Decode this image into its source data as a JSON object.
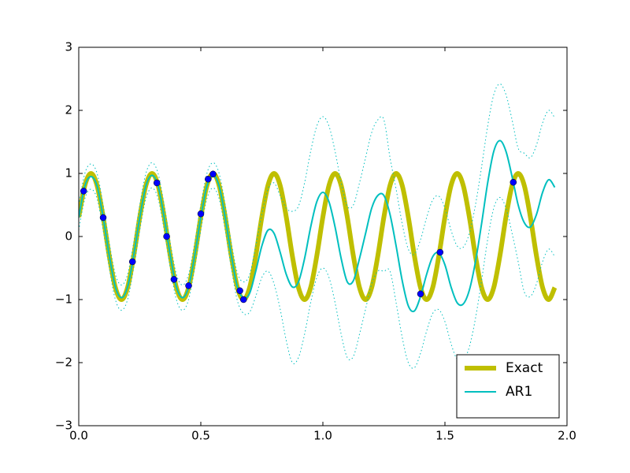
{
  "chart_data": {
    "type": "line",
    "x": [
      0,
      0.025,
      0.05,
      0.075,
      0.1,
      0.125,
      0.15,
      0.175,
      0.2,
      0.225,
      0.25,
      0.275,
      0.3,
      0.325,
      0.35,
      0.375,
      0.4,
      0.425,
      0.45,
      0.475,
      0.5,
      0.525,
      0.55,
      0.575,
      0.6,
      0.625,
      0.65,
      0.675,
      0.7,
      0.725,
      0.75,
      0.775,
      0.8,
      0.825,
      0.85,
      0.875,
      0.9,
      0.925,
      0.95,
      0.975,
      1.0,
      1.025,
      1.05,
      1.075,
      1.1,
      1.125,
      1.15,
      1.175,
      1.2,
      1.225,
      1.25,
      1.275,
      1.3,
      1.325,
      1.35,
      1.375,
      1.4,
      1.425,
      1.45,
      1.475,
      1.5,
      1.525,
      1.55,
      1.575,
      1.6,
      1.625,
      1.65,
      1.675,
      1.7,
      1.725,
      1.75,
      1.775,
      1.8,
      1.825,
      1.85,
      1.875,
      1.9,
      1.925,
      1.95
    ],
    "series": [
      {
        "name": "Exact",
        "color": "#bfbf00",
        "width": 6,
        "style": "solid",
        "values": [
          0.309,
          0.809,
          1,
          0.809,
          0.309,
          -0.309,
          -0.809,
          -1,
          -0.809,
          -0.309,
          0.309,
          0.809,
          1,
          0.809,
          0.309,
          -0.309,
          -0.809,
          -1,
          -0.809,
          -0.309,
          0.309,
          0.809,
          1,
          0.809,
          0.309,
          -0.309,
          -0.809,
          -1,
          -0.809,
          -0.309,
          0.309,
          0.809,
          1,
          0.809,
          0.309,
          -0.309,
          -0.809,
          -1,
          -0.809,
          -0.309,
          0.309,
          0.809,
          1,
          0.809,
          0.309,
          -0.309,
          -0.809,
          -1,
          -0.809,
          -0.309,
          0.309,
          0.809,
          1,
          0.809,
          0.309,
          -0.309,
          -0.809,
          -1,
          -0.809,
          -0.309,
          0.309,
          0.809,
          1,
          0.809,
          0.309,
          -0.309,
          -0.809,
          -1,
          -0.809,
          -0.309,
          0.309,
          0.809,
          1,
          0.809,
          0.309,
          -0.309,
          -0.809,
          -1,
          -0.809
        ]
      },
      {
        "name": "AR1",
        "color": "#00bfbf",
        "width": 2,
        "style": "solid",
        "values": [
          0.3,
          0.8,
          0.95,
          0.8,
          0.3,
          -0.3,
          -0.8,
          -0.97,
          -0.8,
          -0.3,
          0.3,
          0.8,
          0.97,
          0.8,
          0.3,
          -0.3,
          -0.8,
          -0.97,
          -0.8,
          -0.3,
          0.3,
          0.8,
          0.97,
          0.8,
          0.3,
          -0.3,
          -0.8,
          -0.97,
          -0.9,
          -0.55,
          -0.15,
          0.1,
          0.05,
          -0.25,
          -0.6,
          -0.8,
          -0.72,
          -0.35,
          0.15,
          0.55,
          0.7,
          0.55,
          0.15,
          -0.35,
          -0.72,
          -0.7,
          -0.35,
          0.05,
          0.45,
          0.65,
          0.65,
          0.35,
          -0.15,
          -0.7,
          -1.1,
          -1.18,
          -0.95,
          -0.6,
          -0.32,
          -0.26,
          -0.45,
          -0.8,
          -1.05,
          -1.07,
          -0.85,
          -0.4,
          0.2,
          0.85,
          1.35,
          1.52,
          1.35,
          0.95,
          0.5,
          0.22,
          0.15,
          0.35,
          0.7,
          0.9,
          0.78
        ]
      },
      {
        "color": "#00bfbf",
        "width": 1,
        "style": "dotted",
        "values": [
          0.5,
          1.0,
          1.15,
          1.0,
          0.5,
          -0.1,
          -0.6,
          -0.77,
          -0.6,
          -0.1,
          0.5,
          1.0,
          1.17,
          1.0,
          0.5,
          -0.1,
          -0.6,
          -0.77,
          -0.6,
          -0.1,
          0.5,
          1.0,
          1.17,
          1.0,
          0.5,
          -0.1,
          -0.58,
          -0.72,
          -0.6,
          -0.15,
          0.35,
          0.75,
          0.85,
          0.65,
          0.45,
          0.4,
          0.48,
          0.85,
          1.35,
          1.75,
          1.9,
          1.75,
          1.35,
          0.85,
          0.48,
          0.5,
          0.85,
          1.25,
          1.65,
          1.85,
          1.85,
          1.25,
          0.75,
          0.2,
          -0.2,
          -0.28,
          -0.05,
          0.3,
          0.58,
          0.64,
          0.45,
          0.1,
          -0.15,
          -0.17,
          0.05,
          0.5,
          1.1,
          1.75,
          2.25,
          2.42,
          2.25,
          1.85,
          1.4,
          1.32,
          1.25,
          1.45,
          1.8,
          2.0,
          1.88
        ]
      },
      {
        "color": "#00bfbf",
        "width": 1,
        "style": "dotted",
        "values": [
          0.1,
          0.6,
          0.75,
          0.6,
          0.1,
          -0.5,
          -1.0,
          -1.17,
          -1.0,
          -0.5,
          0.1,
          0.6,
          0.77,
          0.6,
          0.1,
          -0.5,
          -1.0,
          -1.17,
          -1.0,
          -0.5,
          0.1,
          0.6,
          0.77,
          0.6,
          0.1,
          -0.5,
          -1.02,
          -1.22,
          -1.2,
          -0.95,
          -0.65,
          -0.55,
          -0.75,
          -1.15,
          -1.65,
          -2.0,
          -1.92,
          -1.55,
          -1.05,
          -0.65,
          -0.5,
          -0.65,
          -1.05,
          -1.55,
          -1.92,
          -1.9,
          -1.55,
          -1.15,
          -0.75,
          -0.55,
          -0.55,
          -0.55,
          -1.05,
          -1.6,
          -2.0,
          -2.08,
          -1.85,
          -1.5,
          -1.22,
          -1.16,
          -1.35,
          -1.7,
          -1.95,
          -1.97,
          -1.75,
          -1.3,
          -0.7,
          -0.05,
          0.45,
          0.62,
          0.45,
          0.05,
          -0.4,
          -0.88,
          -0.95,
          -0.75,
          -0.4,
          -0.2,
          -0.32
        ]
      },
      {
        "color": "#0000ff",
        "marker": "o",
        "style": "none",
        "x": [
          0.02,
          0.1,
          0.22,
          0.32,
          0.36,
          0.39,
          0.45,
          0.5,
          0.53,
          0.55,
          0.66,
          0.675,
          1.4,
          1.48,
          1.78
        ],
        "values": [
          0.72,
          0.3,
          -0.4,
          0.85,
          0.0,
          -0.68,
          -0.78,
          0.36,
          0.91,
          0.99,
          -0.86,
          -1.0,
          -0.91,
          -0.25,
          0.86
        ]
      }
    ],
    "xlim": [
      0,
      2
    ],
    "ylim": [
      -3,
      3
    ],
    "xticks": [
      {
        "value": 0,
        "label": "0.0"
      },
      {
        "value": 0.5,
        "label": "0.5"
      },
      {
        "value": 1,
        "label": "1.0"
      },
      {
        "value": 1.5,
        "label": "1.5"
      },
      {
        "value": 2,
        "label": "2.0"
      }
    ],
    "yticks": [
      {
        "value": -3,
        "label": "−3"
      },
      {
        "value": -2,
        "label": "−2"
      },
      {
        "value": -1,
        "label": "−1"
      },
      0,
      1,
      2,
      3
    ],
    "grid": false,
    "legend": "lower right"
  }
}
